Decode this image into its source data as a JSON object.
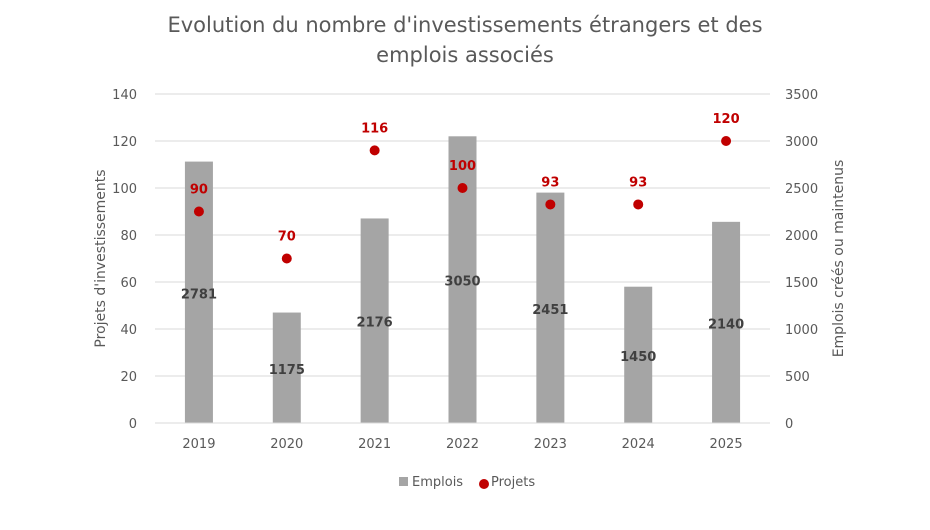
{
  "chart_data": {
    "type": "bar+scatter",
    "title_line1": "Evolution du nombre d'investissements étrangers et des",
    "title_line2": "emplois associés",
    "categories": [
      "2019",
      "2020",
      "2021",
      "2022",
      "2023",
      "2024",
      "2025"
    ],
    "ylabel_left": "Projets d'investissements",
    "ylabel_right": "Emplois créés ou maintenus",
    "ylim_left": [
      0,
      140
    ],
    "ylim_right": [
      0,
      3500
    ],
    "yticks_left": [
      "0",
      "20",
      "40",
      "60",
      "80",
      "100",
      "120",
      "140"
    ],
    "yticks_right": [
      "0",
      "500",
      "1000",
      "1500",
      "2000",
      "2500",
      "3000",
      "3500"
    ],
    "grid": true,
    "legend_position": "bottom",
    "series": [
      {
        "name": "Emplois",
        "type": "bar",
        "axis": "right",
        "color": "#a5a5a5",
        "values": [
          2781,
          1175,
          2176,
          3050,
          2451,
          1450,
          2140
        ]
      },
      {
        "name": "Projets",
        "type": "scatter",
        "axis": "left",
        "color": "#c00000",
        "values": [
          90,
          70,
          116,
          100,
          93,
          93,
          120
        ]
      }
    ]
  }
}
